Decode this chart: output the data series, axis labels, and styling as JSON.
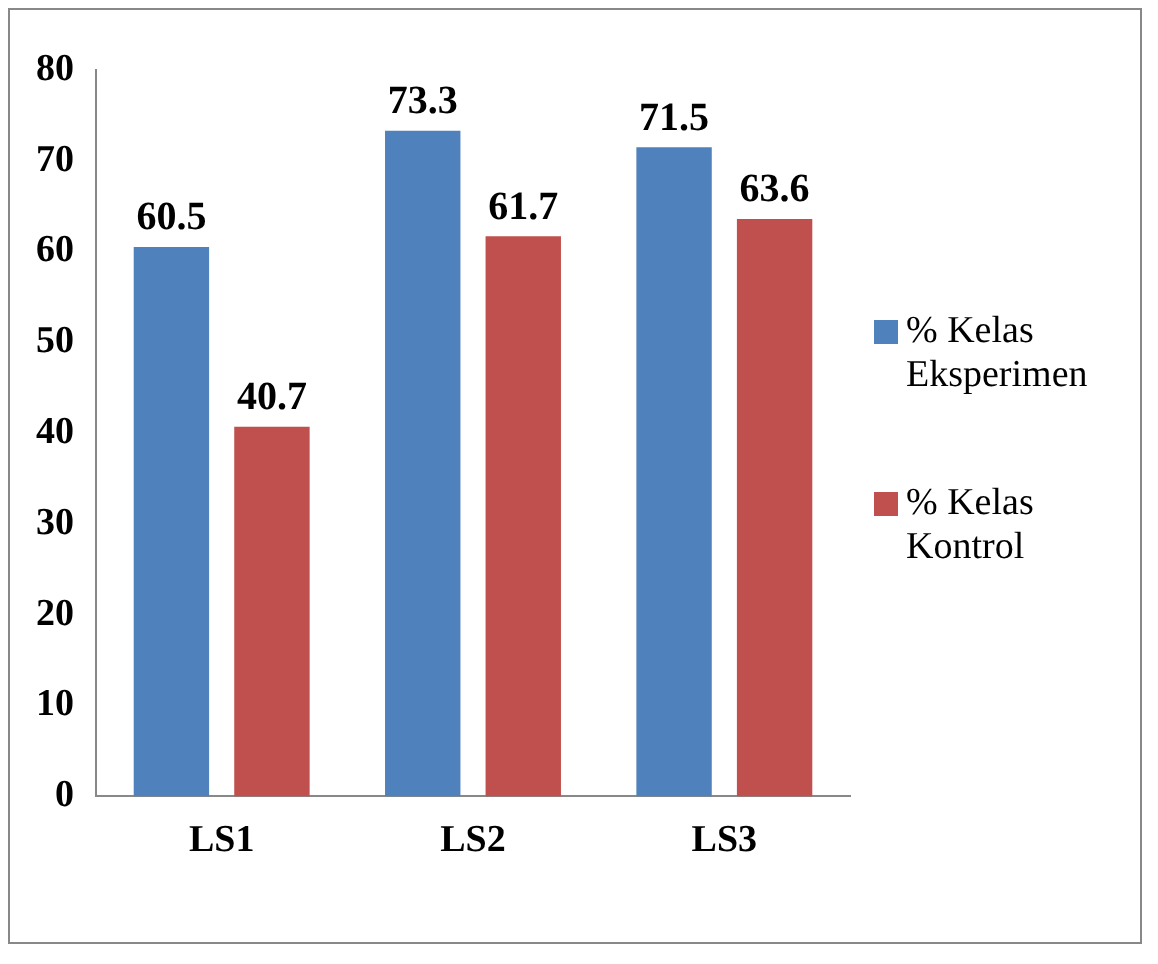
{
  "chart_data": {
    "type": "bar",
    "categories": [
      "LS1",
      "LS2",
      "LS3"
    ],
    "series": [
      {
        "name": "% Kelas Eksperimen",
        "color": "#4f81bd",
        "values": [
          60.5,
          73.3,
          71.5
        ]
      },
      {
        "name": "% Kelas Kontrol",
        "color": "#c0504d",
        "values": [
          40.7,
          61.7,
          63.6
        ]
      }
    ],
    "ylim": [
      0,
      80
    ],
    "yticks": [
      0,
      10,
      20,
      30,
      40,
      50,
      60,
      70,
      80
    ],
    "grid": false,
    "legend": "right",
    "data_labels": true
  }
}
